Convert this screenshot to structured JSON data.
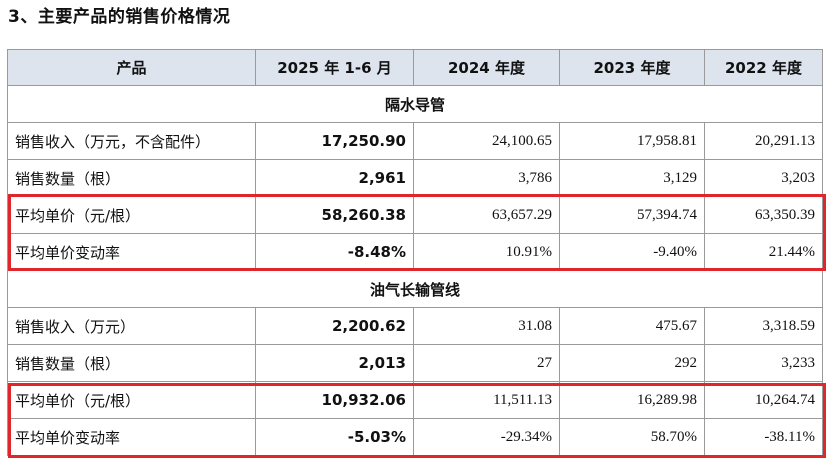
{
  "heading": "3、主要产品的销售价格情况",
  "columns": [
    "产品",
    "2025 年 1-6 月",
    "2024 年度",
    "2023 年度",
    "2022 年度"
  ],
  "sections": [
    {
      "title": "隔水导管",
      "rows": [
        {
          "label": "销售收入（万元，不含配件）",
          "values": [
            "17,250.90",
            "24,100.65",
            "17,958.81",
            "20,291.13"
          ]
        },
        {
          "label": "销售数量（根）",
          "values": [
            "2,961",
            "3,786",
            "3,129",
            "3,203"
          ]
        },
        {
          "label": "平均单价（元/根）",
          "values": [
            "58,260.38",
            "63,657.29",
            "57,394.74",
            "63,350.39"
          ]
        },
        {
          "label": "平均单价变动率",
          "values": [
            "-8.48%",
            "10.91%",
            "-9.40%",
            "21.44%"
          ]
        }
      ]
    },
    {
      "title": "油气长输管线",
      "rows": [
        {
          "label": "销售收入（万元）",
          "values": [
            "2,200.62",
            "31.08",
            "475.67",
            "3,318.59"
          ]
        },
        {
          "label": "销售数量（根）",
          "values": [
            "2,013",
            "27",
            "292",
            "3,233"
          ]
        },
        {
          "label": "平均单价（元/根）",
          "values": [
            "10,932.06",
            "11,511.13",
            "16,289.98",
            "10,264.74"
          ]
        },
        {
          "label": "平均单价变动率",
          "values": [
            "-5.03%",
            "-29.34%",
            "58.70%",
            "-38.11%"
          ]
        }
      ]
    }
  ],
  "highlight_color": "#e0262b",
  "header_bg": "#dde4ee"
}
